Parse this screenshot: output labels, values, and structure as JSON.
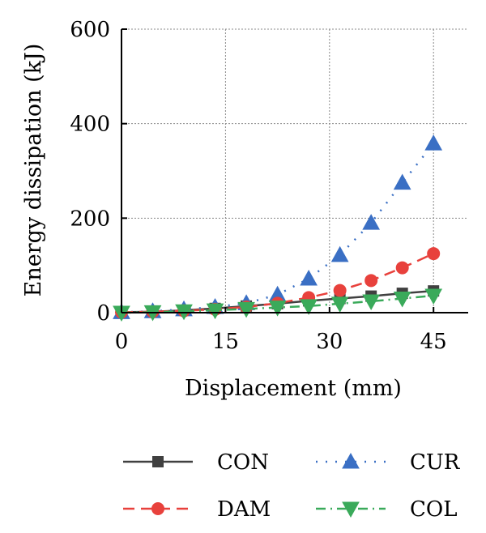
{
  "chart_data": {
    "type": "line",
    "title": "",
    "xlabel": "Displacement (mm)",
    "ylabel": "Energy dissipation (kJ)",
    "xlim": [
      0,
      50
    ],
    "ylim": [
      0,
      600
    ],
    "x_ticks": [
      0,
      15,
      30,
      45
    ],
    "y_ticks": [
      0,
      200,
      400,
      600
    ],
    "grid": true,
    "legend_position": "bottom",
    "series": [
      {
        "name": "CON",
        "color": "#404040",
        "marker": "square",
        "line_style": "solid",
        "x": [
          0,
          4.5,
          9,
          13.5,
          18,
          22.5,
          27,
          31.5,
          36,
          40.5,
          45
        ],
        "y": [
          1,
          2,
          5,
          9,
          14,
          19,
          25,
          30,
          35,
          41,
          46
        ]
      },
      {
        "name": "CUR",
        "color": "#3a6fc4",
        "marker": "triangle-up",
        "line_style": "dotted",
        "x": [
          0,
          4.5,
          9,
          13.5,
          18,
          22.5,
          27,
          31.5,
          36,
          40.5,
          45
        ],
        "y": [
          1,
          3,
          7,
          12,
          20,
          38,
          72,
          122,
          190,
          275,
          358
        ]
      },
      {
        "name": "DAM",
        "color": "#e8413c",
        "marker": "circle",
        "line_style": "dashed",
        "x": [
          0,
          4.5,
          9,
          13.5,
          18,
          22.5,
          27,
          31.5,
          36,
          40.5,
          45
        ],
        "y": [
          1,
          2,
          4,
          7,
          12,
          20,
          32,
          47,
          68,
          95,
          125
        ]
      },
      {
        "name": "COL",
        "color": "#3aaa5a",
        "marker": "triangle-down",
        "line_style": "dashdot",
        "x": [
          0,
          4.5,
          9,
          13.5,
          18,
          22.5,
          27,
          31.5,
          36,
          40.5,
          45
        ],
        "y": [
          0,
          1,
          3,
          5,
          8,
          11,
          14,
          19,
          24,
          30,
          36
        ]
      }
    ],
    "legend_order": [
      "CON",
      "CUR",
      "DAM",
      "COL"
    ]
  }
}
